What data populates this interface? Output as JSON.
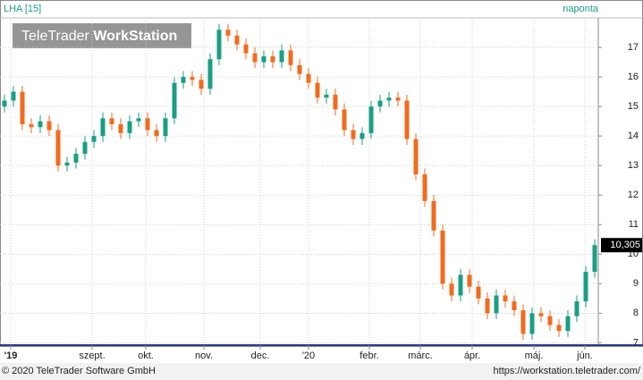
{
  "chart_data": {
    "type": "candlestick",
    "title": "LHA [15]",
    "period": "naponta",
    "watermark": [
      "TeleTrader",
      "WorkStation"
    ],
    "up_color": "#1a9e84",
    "down_color": "#f26b1d",
    "grid": true,
    "open": [
      15.0,
      15.2,
      15.5,
      14.4,
      14.3,
      14.5,
      14.2,
      13.0,
      13.1,
      13.4,
      13.8,
      14.0,
      14.6,
      14.4,
      14.1,
      14.5,
      14.6,
      14.2,
      14.0,
      14.6,
      15.8,
      16.0,
      15.9,
      15.6,
      16.6,
      17.6,
      17.4,
      17.1,
      16.8,
      16.5,
      16.7,
      16.5,
      16.9,
      16.4,
      16.1,
      15.8,
      15.3,
      15.4,
      14.9,
      14.2,
      13.9,
      14.1,
      15.0,
      15.2,
      15.3,
      15.2,
      13.9,
      12.7,
      11.8,
      10.8,
      9.0,
      8.6,
      9.3,
      8.9,
      8.5,
      8.0,
      8.6,
      8.4,
      8.1,
      7.3,
      8.0,
      7.9,
      7.6,
      7.4,
      7.9,
      8.4,
      9.4
    ],
    "high": [
      15.4,
      15.7,
      15.7,
      14.6,
      14.7,
      14.7,
      14.4,
      13.3,
      13.6,
      14.0,
      14.2,
      14.8,
      14.8,
      14.6,
      14.7,
      14.8,
      14.8,
      14.4,
      14.8,
      16.0,
      16.2,
      16.2,
      16.1,
      16.8,
      17.8,
      17.8,
      17.6,
      17.3,
      17.0,
      16.9,
      16.9,
      17.1,
      17.1,
      16.6,
      16.3,
      16.0,
      15.6,
      15.6,
      15.1,
      14.4,
      14.3,
      15.2,
      15.4,
      15.5,
      15.5,
      15.4,
      14.1,
      12.9,
      12.0,
      11.0,
      9.2,
      9.5,
      9.5,
      9.1,
      8.7,
      8.8,
      8.8,
      8.6,
      8.3,
      8.2,
      8.2,
      8.1,
      7.8,
      8.1,
      8.6,
      9.6,
      10.5
    ],
    "low": [
      14.8,
      15.0,
      14.2,
      14.1,
      14.1,
      14.0,
      12.8,
      12.8,
      12.9,
      13.2,
      13.6,
      13.8,
      14.2,
      13.9,
      13.9,
      14.3,
      14.0,
      13.8,
      13.8,
      14.4,
      15.6,
      15.7,
      15.4,
      15.4,
      16.4,
      17.2,
      16.9,
      16.6,
      16.3,
      16.3,
      16.3,
      16.3,
      16.2,
      15.9,
      15.6,
      15.1,
      15.1,
      14.7,
      14.0,
      13.7,
      13.7,
      13.9,
      14.8,
      15.0,
      15.0,
      13.7,
      12.5,
      11.6,
      10.6,
      8.8,
      8.4,
      8.4,
      8.7,
      8.3,
      7.8,
      7.8,
      8.2,
      7.9,
      7.1,
      7.1,
      7.7,
      7.4,
      7.2,
      7.2,
      7.7,
      8.2,
      9.2
    ],
    "close": [
      15.2,
      15.5,
      14.4,
      14.3,
      14.5,
      14.2,
      13.0,
      13.1,
      13.4,
      13.8,
      14.0,
      14.6,
      14.4,
      14.1,
      14.5,
      14.6,
      14.2,
      14.0,
      14.6,
      15.8,
      16.0,
      15.9,
      15.6,
      16.6,
      17.6,
      17.4,
      17.1,
      16.8,
      16.5,
      16.7,
      16.5,
      16.9,
      16.4,
      16.1,
      15.8,
      15.3,
      15.4,
      14.9,
      14.2,
      13.9,
      14.1,
      15.0,
      15.2,
      15.3,
      15.2,
      13.9,
      12.7,
      11.8,
      10.8,
      9.0,
      8.6,
      9.3,
      8.9,
      8.5,
      8.0,
      8.6,
      8.4,
      8.1,
      7.3,
      8.0,
      7.9,
      7.6,
      7.4,
      7.9,
      8.4,
      9.4,
      10.305
    ],
    "xlim": [
      -0.5,
      66.5
    ],
    "xticks": [
      {
        "value": 0.7,
        "label": "'19"
      },
      {
        "value": 9.8,
        "label": "szept."
      },
      {
        "value": 15.8,
        "label": "okt."
      },
      {
        "value": 22.3,
        "label": "nov."
      },
      {
        "value": 28.6,
        "label": "dec."
      },
      {
        "value": 34,
        "label": "'20"
      },
      {
        "value": 40.8,
        "label": "febr."
      },
      {
        "value": 46.5,
        "label": "márc."
      },
      {
        "value": 52.3,
        "label": "ápr."
      },
      {
        "value": 59.2,
        "label": "máj."
      },
      {
        "value": 64.9,
        "label": "jún."
      }
    ],
    "ylim": [
      6.95,
      18.0
    ],
    "yticks": [
      7,
      8,
      9,
      10,
      11,
      12,
      13,
      14,
      15,
      16,
      17
    ],
    "last_price": {
      "value": 10.305,
      "label": "10,305"
    }
  },
  "footer": {
    "copyright": "© 2020 TeleTrader Software GmbH",
    "url": "https://workstation.teletrader.com/"
  }
}
